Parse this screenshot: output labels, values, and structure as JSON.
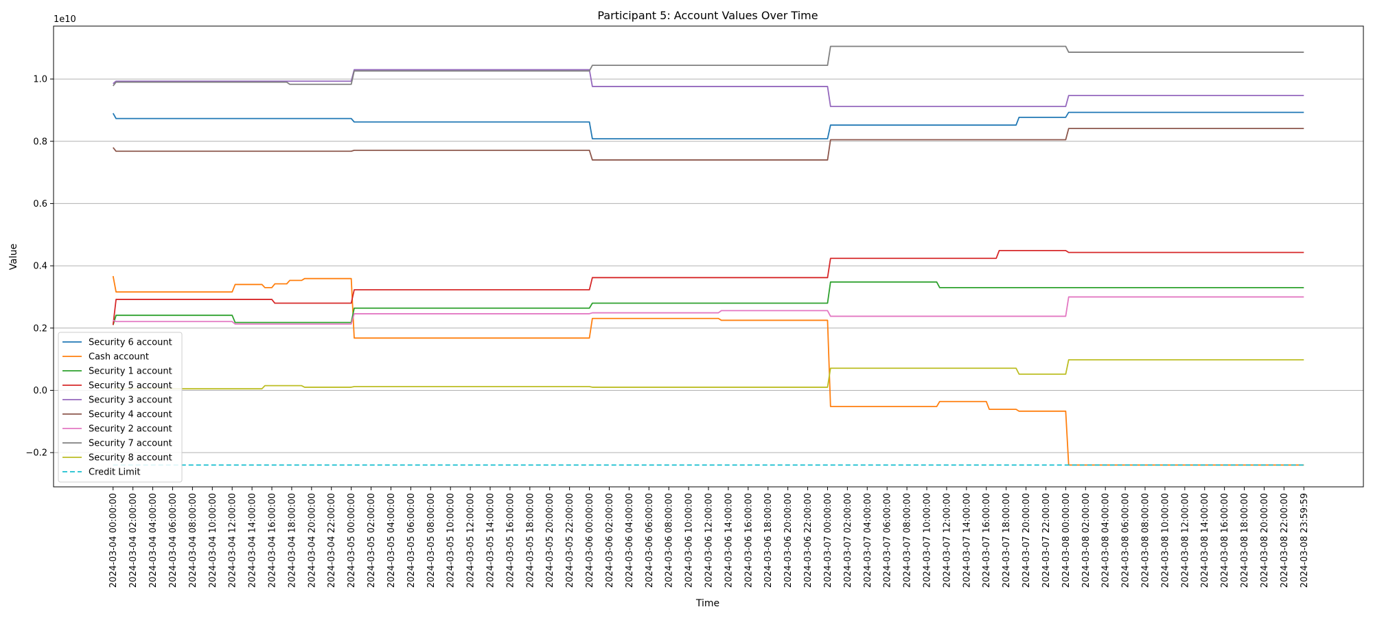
{
  "chart_data": {
    "type": "line",
    "title": "Participant 5: Account Values Over Time",
    "xlabel": "Time",
    "ylabel": "Value",
    "y_offset_label": "1e10",
    "y_multiplier": 10000000000.0,
    "ylim": [
      -0.31,
      1.17
    ],
    "yticks": [
      -0.2,
      0.0,
      0.2,
      0.4,
      0.6,
      0.8,
      1.0
    ],
    "ytick_labels": [
      "−0.2",
      "0.0",
      "0.2",
      "0.4",
      "0.6",
      "0.8",
      "1.0"
    ],
    "xlim": [
      -6.0,
      126.0
    ],
    "xticks": [
      0,
      2,
      4,
      6,
      8,
      10,
      12,
      14,
      16,
      18,
      20,
      22,
      24,
      26,
      28,
      30,
      32,
      34,
      36,
      38,
      40,
      42,
      44,
      46,
      48,
      50,
      52,
      54,
      56,
      58,
      60,
      62,
      64,
      66,
      68,
      70,
      72,
      74,
      76,
      78,
      80,
      82,
      84,
      86,
      88,
      90,
      92,
      94,
      96,
      98,
      100,
      102,
      104,
      106,
      108,
      110,
      112,
      114,
      116,
      118,
      119.9997
    ],
    "xtick_labels": [
      "2024-03-04 00:00:00",
      "2024-03-04 02:00:00",
      "2024-03-04 04:00:00",
      "2024-03-04 06:00:00",
      "2024-03-04 08:00:00",
      "2024-03-04 10:00:00",
      "2024-03-04 12:00:00",
      "2024-03-04 14:00:00",
      "2024-03-04 16:00:00",
      "2024-03-04 18:00:00",
      "2024-03-04 20:00:00",
      "2024-03-04 22:00:00",
      "2024-03-05 00:00:00",
      "2024-03-05 02:00:00",
      "2024-03-05 04:00:00",
      "2024-03-05 06:00:00",
      "2024-03-05 08:00:00",
      "2024-03-05 10:00:00",
      "2024-03-05 12:00:00",
      "2024-03-05 14:00:00",
      "2024-03-05 16:00:00",
      "2024-03-05 18:00:00",
      "2024-03-05 20:00:00",
      "2024-03-05 22:00:00",
      "2024-03-06 00:00:00",
      "2024-03-06 02:00:00",
      "2024-03-06 04:00:00",
      "2024-03-06 06:00:00",
      "2024-03-06 08:00:00",
      "2024-03-06 10:00:00",
      "2024-03-06 12:00:00",
      "2024-03-06 14:00:00",
      "2024-03-06 16:00:00",
      "2024-03-06 18:00:00",
      "2024-03-06 20:00:00",
      "2024-03-06 22:00:00",
      "2024-03-07 00:00:00",
      "2024-03-07 02:00:00",
      "2024-03-07 04:00:00",
      "2024-03-07 06:00:00",
      "2024-03-07 08:00:00",
      "2024-03-07 10:00:00",
      "2024-03-07 12:00:00",
      "2024-03-07 14:00:00",
      "2024-03-07 16:00:00",
      "2024-03-07 18:00:00",
      "2024-03-07 20:00:00",
      "2024-03-07 22:00:00",
      "2024-03-08 00:00:00",
      "2024-03-08 02:00:00",
      "2024-03-08 04:00:00",
      "2024-03-08 06:00:00",
      "2024-03-08 08:00:00",
      "2024-03-08 10:00:00",
      "2024-03-08 12:00:00",
      "2024-03-08 14:00:00",
      "2024-03-08 16:00:00",
      "2024-03-08 18:00:00",
      "2024-03-08 20:00:00",
      "2024-03-08 22:00:00",
      "2024-03-08 23:59:59"
    ],
    "grid": "horizontal",
    "legend_position": "lower-left",
    "series": [
      {
        "name": "Security 6 account",
        "color": "#1f77b4",
        "dash": false,
        "points": [
          [
            0,
            0.89
          ],
          [
            0.3,
            0.873
          ],
          [
            24,
            0.873
          ],
          [
            24.3,
            0.862
          ],
          [
            48,
            0.862
          ],
          [
            48.3,
            0.808
          ],
          [
            72,
            0.808
          ],
          [
            72.3,
            0.852
          ],
          [
            91,
            0.852
          ],
          [
            91.3,
            0.877
          ],
          [
            96,
            0.877
          ],
          [
            96.3,
            0.893
          ],
          [
            120,
            0.893
          ]
        ]
      },
      {
        "name": "Cash account",
        "color": "#ff7f0e",
        "dash": false,
        "points": [
          [
            0,
            0.367
          ],
          [
            0.3,
            0.316
          ],
          [
            12,
            0.316
          ],
          [
            12.3,
            0.34
          ],
          [
            15,
            0.34
          ],
          [
            15.3,
            0.33
          ],
          [
            16,
            0.33
          ],
          [
            16.3,
            0.342
          ],
          [
            17.5,
            0.342
          ],
          [
            17.8,
            0.353
          ],
          [
            19,
            0.353
          ],
          [
            19.3,
            0.359
          ],
          [
            24,
            0.359
          ],
          [
            24.3,
            0.168
          ],
          [
            48,
            0.168
          ],
          [
            48.3,
            0.231
          ],
          [
            61,
            0.231
          ],
          [
            61.3,
            0.225
          ],
          [
            72,
            0.225
          ],
          [
            72.3,
            -0.052
          ],
          [
            83,
            -0.052
          ],
          [
            83.3,
            -0.036
          ],
          [
            88,
            -0.036
          ],
          [
            88.3,
            -0.061
          ],
          [
            91,
            -0.061
          ],
          [
            91.3,
            -0.067
          ],
          [
            96,
            -0.067
          ],
          [
            96.3,
            -0.24
          ],
          [
            120,
            -0.24
          ]
        ]
      },
      {
        "name": "Security 1 account",
        "color": "#2ca02c",
        "dash": false,
        "points": [
          [
            0,
            0.21
          ],
          [
            0.3,
            0.241
          ],
          [
            12,
            0.241
          ],
          [
            12.3,
            0.218
          ],
          [
            24,
            0.218
          ],
          [
            24.3,
            0.264
          ],
          [
            48,
            0.264
          ],
          [
            48.3,
            0.28
          ],
          [
            72,
            0.28
          ],
          [
            72.3,
            0.348
          ],
          [
            83,
            0.348
          ],
          [
            83.3,
            0.33
          ],
          [
            120,
            0.33
          ]
        ]
      },
      {
        "name": "Security 5 account",
        "color": "#d62728",
        "dash": false,
        "points": [
          [
            0,
            0.21
          ],
          [
            0.3,
            0.292
          ],
          [
            16,
            0.292
          ],
          [
            16.3,
            0.28
          ],
          [
            24,
            0.28
          ],
          [
            24.3,
            0.323
          ],
          [
            48,
            0.323
          ],
          [
            48.3,
            0.362
          ],
          [
            72,
            0.362
          ],
          [
            72.3,
            0.424
          ],
          [
            89,
            0.424
          ],
          [
            89.3,
            0.449
          ],
          [
            96,
            0.449
          ],
          [
            96.3,
            0.443
          ],
          [
            120,
            0.443
          ]
        ]
      },
      {
        "name": "Security 3 account",
        "color": "#9467bd",
        "dash": false,
        "points": [
          [
            0,
            0.985
          ],
          [
            0.3,
            0.993
          ],
          [
            24,
            0.993
          ],
          [
            24.3,
            1.03
          ],
          [
            48,
            1.03
          ],
          [
            48.3,
            0.976
          ],
          [
            72,
            0.976
          ],
          [
            72.3,
            0.912
          ],
          [
            96,
            0.912
          ],
          [
            96.3,
            0.947
          ],
          [
            120,
            0.947
          ]
        ]
      },
      {
        "name": "Security 4 account",
        "color": "#8c564b",
        "dash": false,
        "points": [
          [
            0,
            0.78
          ],
          [
            0.3,
            0.768
          ],
          [
            24,
            0.768
          ],
          [
            24.3,
            0.771
          ],
          [
            48,
            0.771
          ],
          [
            48.3,
            0.74
          ],
          [
            72,
            0.74
          ],
          [
            72.3,
            0.805
          ],
          [
            96,
            0.805
          ],
          [
            96.3,
            0.841
          ],
          [
            120,
            0.841
          ]
        ]
      },
      {
        "name": "Security 2 account",
        "color": "#e377c2",
        "dash": false,
        "points": [
          [
            0,
            0.225
          ],
          [
            0.3,
            0.221
          ],
          [
            12,
            0.221
          ],
          [
            12.3,
            0.213
          ],
          [
            24,
            0.213
          ],
          [
            24.3,
            0.246
          ],
          [
            48,
            0.246
          ],
          [
            48.3,
            0.249
          ],
          [
            61,
            0.249
          ],
          [
            61.3,
            0.256
          ],
          [
            72,
            0.256
          ],
          [
            72.3,
            0.238
          ],
          [
            96,
            0.238
          ],
          [
            96.3,
            0.3
          ],
          [
            120,
            0.3
          ]
        ]
      },
      {
        "name": "Security 7 account",
        "color": "#7f7f7f",
        "dash": false,
        "points": [
          [
            0,
            0.978
          ],
          [
            0.3,
            0.99
          ],
          [
            17.5,
            0.99
          ],
          [
            17.8,
            0.983
          ],
          [
            24,
            0.983
          ],
          [
            24.3,
            1.026
          ],
          [
            48,
            1.026
          ],
          [
            48.3,
            1.044
          ],
          [
            72,
            1.044
          ],
          [
            72.3,
            1.105
          ],
          [
            96,
            1.105
          ],
          [
            96.3,
            1.086
          ],
          [
            120,
            1.086
          ]
        ]
      },
      {
        "name": "Security 8 account",
        "color": "#bcbd22",
        "dash": false,
        "points": [
          [
            0,
            0.005
          ],
          [
            0.3,
            0.005
          ],
          [
            15,
            0.005
          ],
          [
            15.3,
            0.015
          ],
          [
            19,
            0.015
          ],
          [
            19.3,
            0.01
          ],
          [
            24,
            0.01
          ],
          [
            24.3,
            0.012
          ],
          [
            48,
            0.012
          ],
          [
            48.3,
            0.01
          ],
          [
            72,
            0.01
          ],
          [
            72.3,
            0.071
          ],
          [
            91,
            0.071
          ],
          [
            91.3,
            0.052
          ],
          [
            96,
            0.052
          ],
          [
            96.3,
            0.098
          ],
          [
            120,
            0.098
          ]
        ]
      },
      {
        "name": "Credit Limit",
        "color": "#17becf",
        "dash": true,
        "points": [
          [
            0,
            -0.24
          ],
          [
            120,
            -0.24
          ]
        ]
      }
    ]
  }
}
